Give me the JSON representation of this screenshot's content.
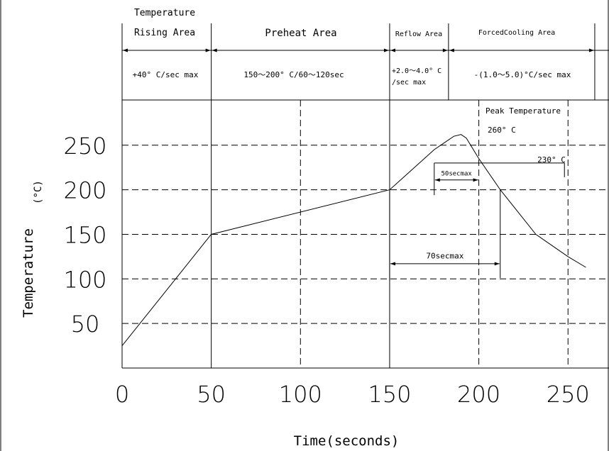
{
  "chart_data": {
    "type": "line",
    "xlabel": "Time(seconds)",
    "ylabel": "Temperature",
    "ylabel_unit": "(°C)",
    "x_ticks": [
      0,
      50,
      100,
      150,
      200,
      250
    ],
    "y_ticks": [
      50,
      100,
      150,
      200,
      250
    ],
    "xlim": [
      0,
      272
    ],
    "ylim": [
      0,
      295
    ],
    "grid": "dashed",
    "series": [
      {
        "x": [
          0,
          50,
          150,
          160,
          175,
          186,
          190,
          193,
          200,
          212,
          232,
          250,
          260
        ],
        "y": [
          25,
          150,
          200,
          218,
          245,
          260,
          262,
          258,
          235,
          200,
          150,
          125,
          113
        ]
      }
    ],
    "zones": [
      {
        "title_lines": [
          "Temperature",
          "Rising Area"
        ],
        "rate": "+40° C/sec max",
        "x_start": 0,
        "x_end": 50
      },
      {
        "title_lines": [
          "Preheat Area"
        ],
        "rate": "150～200° C/60～120sec",
        "x_start": 50,
        "x_end": 150
      },
      {
        "title_lines": [
          "Reflow Area"
        ],
        "rate_lines": [
          "+2.0～4.0° C",
          "/sec max"
        ],
        "x_start": 150,
        "x_end": 183
      },
      {
        "title_lines": [
          "ForcedCooling Area"
        ],
        "rate": "-(1.0～5.0)°C/sec max",
        "x_start": 183,
        "x_end": 265
      }
    ],
    "annotations": {
      "peak_label": "Peak Temperature",
      "peak_value": "260° C",
      "level_230_label": "230° C",
      "level_230": 230,
      "time_above_230_label": "50secmax",
      "time_above_230_x": [
        175,
        200
      ],
      "time_above_200_label": "70secmax",
      "time_above_200_x": [
        150,
        212
      ]
    }
  }
}
